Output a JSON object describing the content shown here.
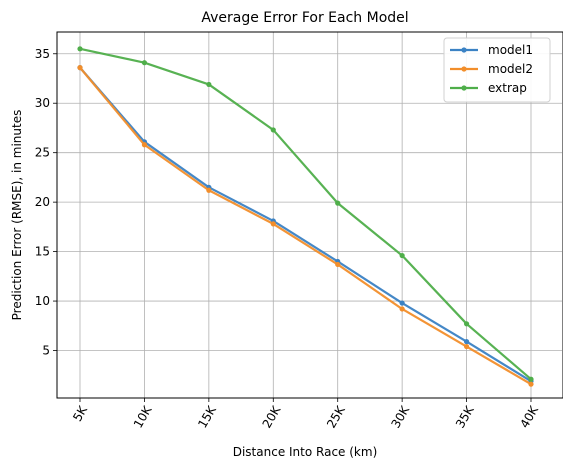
{
  "chart_data": {
    "type": "line",
    "title": "Average Error For Each Model",
    "xlabel": "Distance Into Race (km)",
    "ylabel": "Prediction Error (RMSE), in minutes",
    "categories": [
      "5K",
      "10K",
      "15K",
      "20K",
      "25K",
      "30K",
      "35K",
      "40K"
    ],
    "ylim": [
      0.2,
      37.2
    ],
    "yticks": [
      5,
      10,
      15,
      20,
      25,
      30,
      35
    ],
    "grid": true,
    "legend_position": "top-right",
    "series": [
      {
        "name": "model1",
        "color": "#3b82c4",
        "values": [
          33.6,
          26.1,
          21.5,
          18.1,
          14.0,
          9.8,
          5.9,
          1.9
        ]
      },
      {
        "name": "model2",
        "color": "#f28e2b",
        "values": [
          33.6,
          25.8,
          21.2,
          17.8,
          13.7,
          9.2,
          5.4,
          1.6
        ]
      },
      {
        "name": "extrap",
        "color": "#4fae4a",
        "values": [
          35.5,
          34.1,
          31.9,
          27.3,
          19.9,
          14.6,
          7.7,
          2.1
        ]
      }
    ]
  }
}
